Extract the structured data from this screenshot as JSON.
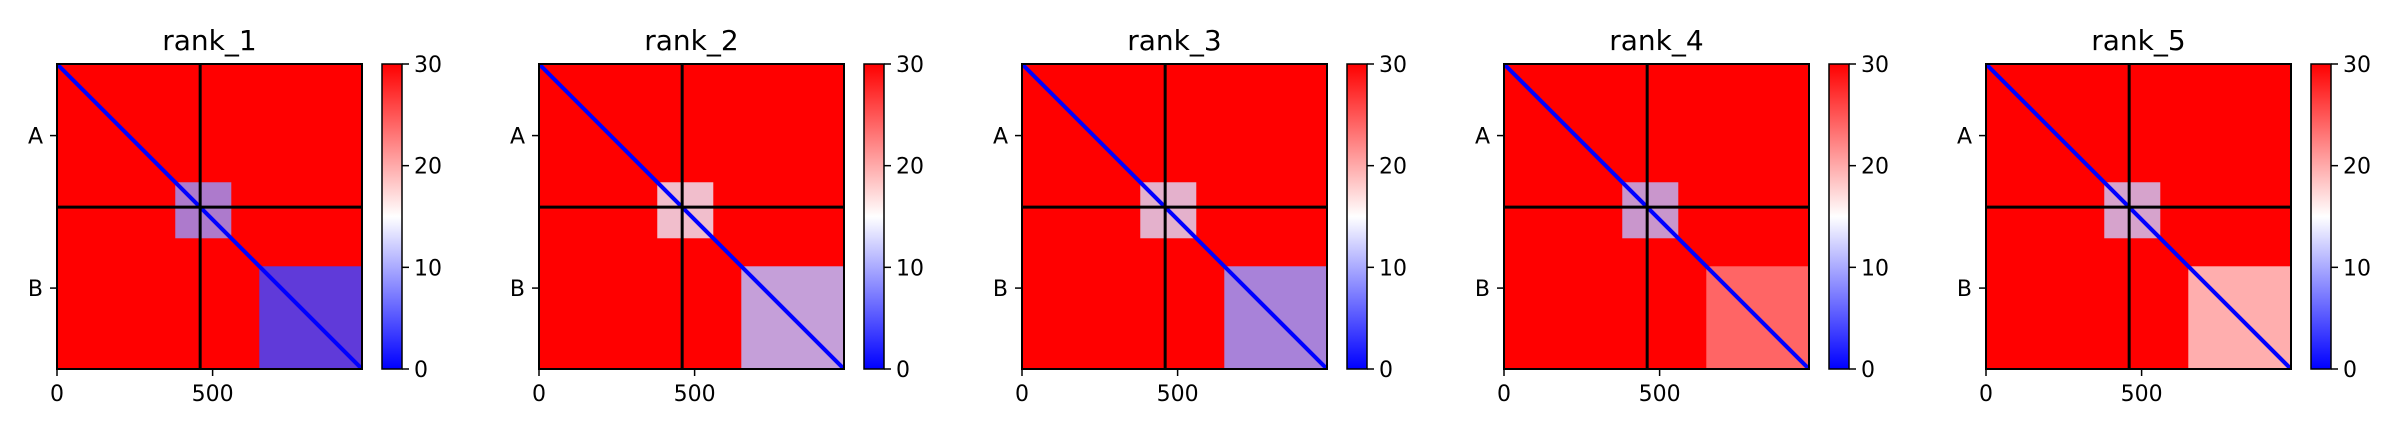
{
  "chart_data": {
    "type": "heatmap",
    "colormap": {
      "low": "#0000ff",
      "mid": "#ffffff",
      "high": "#ff0000"
    },
    "vmin": 0,
    "vmax": 30,
    "n_residues": 980,
    "chain_boundary": 460,
    "x_range": [
      0,
      980
    ],
    "x_ticks": [
      0,
      500
    ],
    "y_ticks": [
      {
        "label": "A",
        "at": 230
      },
      {
        "label": "B",
        "at": 720
      }
    ],
    "colorbar_ticks": [
      0,
      10,
      20,
      30
    ],
    "grid": false,
    "panels": [
      {
        "title": "rank_1",
        "interface_block": [
          380,
          560
        ],
        "interface_level": 9,
        "b_domain": [
          650,
          980
        ],
        "b_domain_level": 4
      },
      {
        "title": "rank_2",
        "interface_block": [
          380,
          560
        ],
        "interface_level": 14,
        "b_domain": [
          650,
          980
        ],
        "b_domain_level": 11
      },
      {
        "title": "rank_3",
        "interface_block": [
          380,
          560
        ],
        "interface_level": 13,
        "b_domain": [
          650,
          980
        ],
        "b_domain_level": 9
      },
      {
        "title": "rank_4",
        "interface_block": [
          380,
          560
        ],
        "interface_level": 11,
        "b_domain": [
          650,
          980
        ],
        "b_domain_level": 23
      },
      {
        "title": "rank_5",
        "interface_block": [
          380,
          560
        ],
        "interface_level": 12,
        "b_domain": [
          650,
          980
        ],
        "b_domain_level": 18
      }
    ]
  }
}
